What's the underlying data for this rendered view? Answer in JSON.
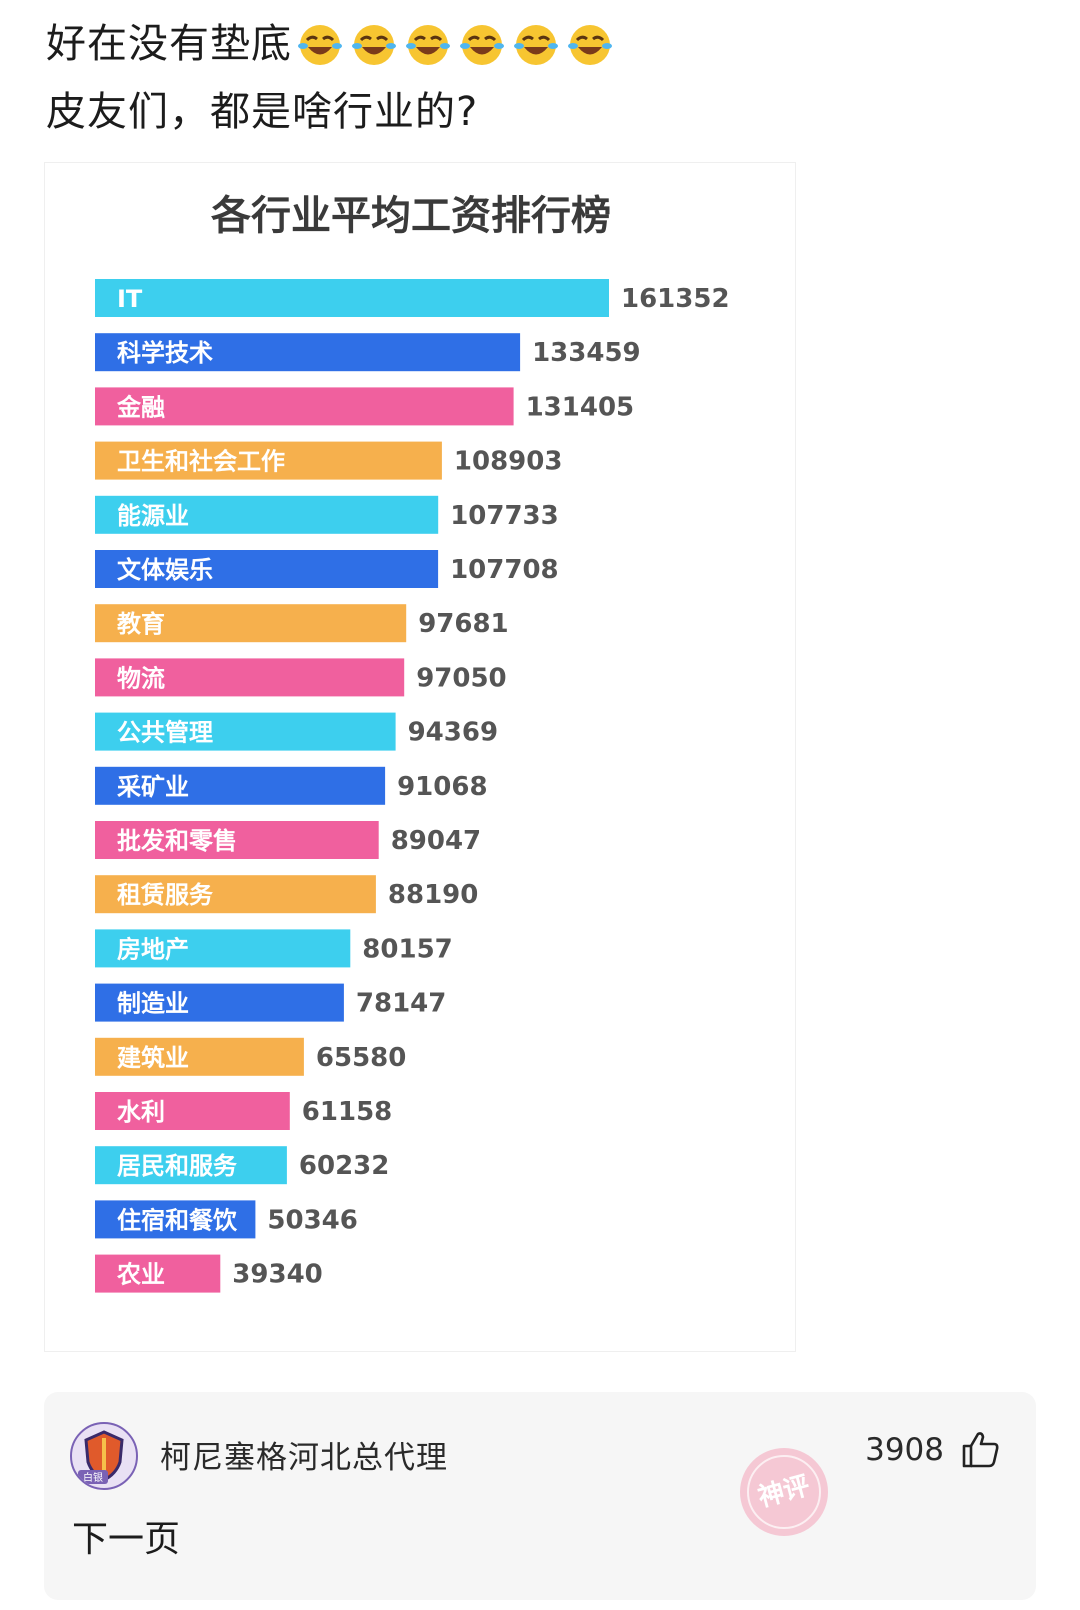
{
  "post": {
    "line1": "好在没有垫底",
    "line2": "皮友们，都是啥行业的?",
    "emoji_count_icon": "rolling-on-floor-laughing-icon"
  },
  "chart_data": {
    "type": "bar",
    "orientation": "horizontal",
    "title": "各行业平均工资排行榜",
    "categories": [
      "IT",
      "科学技术",
      "金融",
      "卫生和社会工作",
      "能源业",
      "文体娱乐",
      "教育",
      "物流",
      "公共管理",
      "采矿业",
      "批发和零售",
      "租赁服务",
      "房地产",
      "制造业",
      "建筑业",
      "水利",
      "居民和服务",
      "住宿和餐饮",
      "农业"
    ],
    "values": [
      161352,
      133459,
      131405,
      108903,
      107733,
      107708,
      97681,
      97050,
      94369,
      91068,
      89047,
      88190,
      80157,
      78147,
      65580,
      61158,
      60232,
      50346,
      39340
    ],
    "colors": [
      "#3dcfee",
      "#2f6fe6",
      "#f0609e",
      "#f6b04d",
      "#3dcfee",
      "#2f6fe6",
      "#f6b04d",
      "#f0609e",
      "#3dcfee",
      "#2f6fe6",
      "#f0609e",
      "#f6b04d",
      "#3dcfee",
      "#2f6fe6",
      "#f6b04d",
      "#f0609e",
      "#3dcfee",
      "#2f6fe6",
      "#f0609e"
    ],
    "legend": "none",
    "grid": false
  },
  "comment": {
    "username": "柯尼塞格河北总代理",
    "likes": "3908",
    "reply": "下一页",
    "badge": "神评",
    "avatar_text": "白银"
  }
}
